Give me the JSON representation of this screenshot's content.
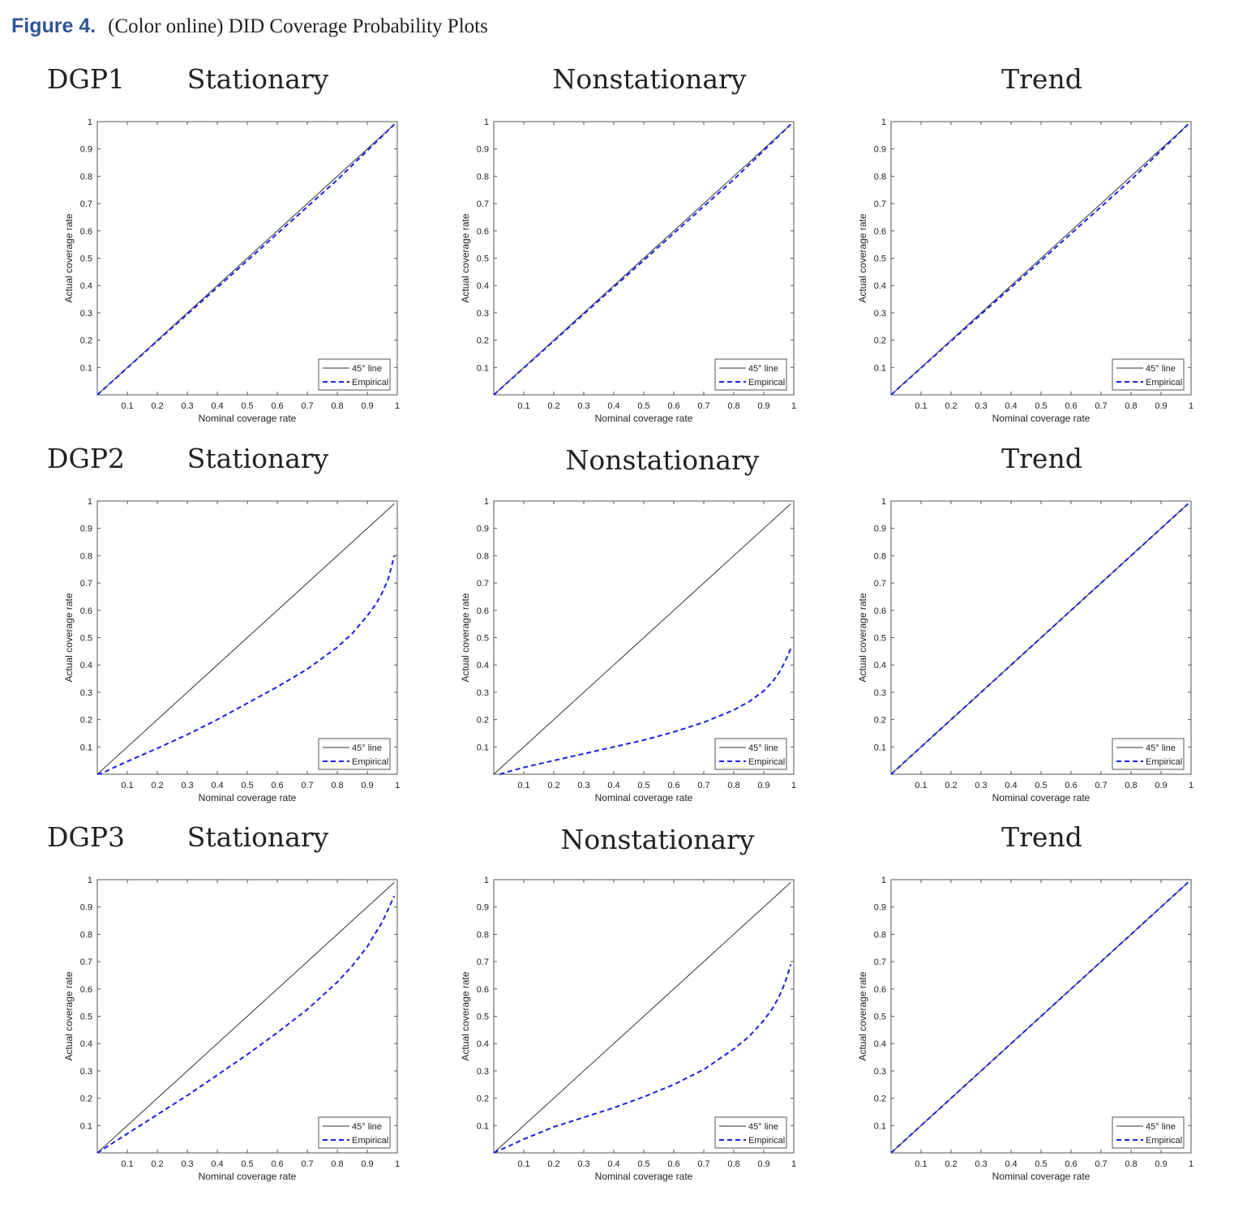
{
  "figure": {
    "label": "Figure 4.",
    "caption": "(Color online) DID Coverage Probability Plots",
    "label_color": "#2e5597"
  },
  "rows": [
    {
      "label": "DGP1",
      "titles": [
        "Stationary",
        "Nonstationary",
        "Trend"
      ]
    },
    {
      "label": "DGP2",
      "titles": [
        "Stationary",
        "Nonstationary",
        "Trend"
      ]
    },
    {
      "label": "DGP3",
      "titles": [
        "Stationary",
        "Nonstationary",
        "Trend"
      ]
    }
  ],
  "chart_data": [
    {
      "type": "line",
      "title": "DGP1 Stationary",
      "xlabel": "Nominal coverage rate",
      "ylabel": "Actual coverage rate",
      "xlim": [
        0,
        1
      ],
      "ylim": [
        0,
        1
      ],
      "legend_position": "bottom-right",
      "xticks": [
        "0.1",
        "0.2",
        "0.3",
        "0.4",
        "0.5",
        "0.6",
        "0.7",
        "0.8",
        "0.9",
        "1"
      ],
      "yticks": [
        "0.1",
        "0.2",
        "0.3",
        "0.4",
        "0.5",
        "0.6",
        "0.7",
        "0.8",
        "0.9",
        "1"
      ],
      "series": [
        {
          "name": "45° line",
          "color": "#333333",
          "style": "solid",
          "x": [
            0,
            0.99
          ],
          "y": [
            0,
            0.99
          ]
        },
        {
          "name": "Empirical",
          "color": "#1f1fe6",
          "style": "dashed",
          "x": [
            0,
            0.2,
            0.4,
            0.6,
            0.8,
            0.99
          ],
          "y": [
            0,
            0.197,
            0.393,
            0.59,
            0.787,
            0.99
          ]
        }
      ]
    },
    {
      "type": "line",
      "title": "DGP1 Nonstationary",
      "xlabel": "Nominal coverage rate",
      "ylabel": "Actual coverage rate",
      "xlim": [
        0,
        1
      ],
      "ylim": [
        0,
        1
      ],
      "legend_position": "bottom-right",
      "xticks": [
        "0.1",
        "0.2",
        "0.3",
        "0.4",
        "0.5",
        "0.6",
        "0.7",
        "0.8",
        "0.9",
        "1"
      ],
      "yticks": [
        "0.1",
        "0.2",
        "0.3",
        "0.4",
        "0.5",
        "0.6",
        "0.7",
        "0.8",
        "0.9",
        "1"
      ],
      "series": [
        {
          "name": "45° line",
          "color": "#333333",
          "style": "solid",
          "x": [
            0,
            0.99
          ],
          "y": [
            0,
            0.99
          ]
        },
        {
          "name": "Empirical",
          "color": "#1f1fe6",
          "style": "dashed",
          "x": [
            0,
            0.2,
            0.4,
            0.6,
            0.8,
            0.99
          ],
          "y": [
            0,
            0.197,
            0.394,
            0.591,
            0.788,
            0.99
          ]
        }
      ]
    },
    {
      "type": "line",
      "title": "DGP1 Trend",
      "xlabel": "Nominal coverage rate",
      "ylabel": "Actual coverage rate",
      "xlim": [
        0,
        1
      ],
      "ylim": [
        0,
        1
      ],
      "legend_position": "bottom-right",
      "xticks": [
        "0.1",
        "0.2",
        "0.3",
        "0.4",
        "0.5",
        "0.6",
        "0.7",
        "0.8",
        "0.9",
        "1"
      ],
      "yticks": [
        "0.1",
        "0.2",
        "0.3",
        "0.4",
        "0.5",
        "0.6",
        "0.7",
        "0.8",
        "0.9",
        "1"
      ],
      "series": [
        {
          "name": "45° line",
          "color": "#333333",
          "style": "solid",
          "x": [
            0,
            0.99
          ],
          "y": [
            0,
            0.99
          ]
        },
        {
          "name": "Empirical",
          "color": "#1f1fe6",
          "style": "dashed",
          "x": [
            0,
            0.2,
            0.4,
            0.6,
            0.8,
            0.99
          ],
          "y": [
            0,
            0.197,
            0.393,
            0.59,
            0.787,
            0.99
          ]
        }
      ]
    },
    {
      "type": "line",
      "title": "DGP2 Stationary",
      "xlabel": "Nominal coverage rate",
      "ylabel": "Actual coverage rate",
      "xlim": [
        0,
        1
      ],
      "ylim": [
        0,
        1
      ],
      "legend_position": "bottom-right",
      "xticks": [
        "0.1",
        "0.2",
        "0.3",
        "0.4",
        "0.5",
        "0.6",
        "0.7",
        "0.8",
        "0.9",
        "1"
      ],
      "yticks": [
        "0.1",
        "0.2",
        "0.3",
        "0.4",
        "0.5",
        "0.6",
        "0.7",
        "0.8",
        "0.9",
        "1"
      ],
      "series": [
        {
          "name": "45° line",
          "color": "#333333",
          "style": "solid",
          "x": [
            0,
            0.99
          ],
          "y": [
            0,
            0.99
          ]
        },
        {
          "name": "Empirical",
          "color": "#1f1fe6",
          "style": "dashed",
          "x": [
            0,
            0.02,
            0.05,
            0.1,
            0.2,
            0.3,
            0.4,
            0.5,
            0.6,
            0.7,
            0.8,
            0.85,
            0.9,
            0.93,
            0.95,
            0.97,
            0.99
          ],
          "y": [
            0,
            0.006,
            0.022,
            0.047,
            0.095,
            0.145,
            0.2,
            0.26,
            0.32,
            0.385,
            0.465,
            0.515,
            0.58,
            0.625,
            0.665,
            0.715,
            0.8
          ]
        }
      ]
    },
    {
      "type": "line",
      "title": "DGP2 Nonstationary",
      "xlabel": "Nominal coverage rate",
      "ylabel": "Actual coverage rate",
      "xlim": [
        0,
        1
      ],
      "ylim": [
        0,
        1
      ],
      "legend_position": "bottom-right",
      "xticks": [
        "0.1",
        "0.2",
        "0.3",
        "0.4",
        "0.5",
        "0.6",
        "0.7",
        "0.8",
        "0.9",
        "1"
      ],
      "yticks": [
        "0.1",
        "0.2",
        "0.3",
        "0.4",
        "0.5",
        "0.6",
        "0.7",
        "0.8",
        "0.9",
        "1"
      ],
      "series": [
        {
          "name": "45° line",
          "color": "#333333",
          "style": "solid",
          "x": [
            0,
            0.99
          ],
          "y": [
            0,
            0.99
          ]
        },
        {
          "name": "Empirical",
          "color": "#1f1fe6",
          "style": "dashed",
          "x": [
            0.02,
            0.05,
            0.1,
            0.2,
            0.3,
            0.4,
            0.5,
            0.6,
            0.7,
            0.8,
            0.85,
            0.9,
            0.93,
            0.95,
            0.97,
            0.99
          ],
          "y": [
            0,
            0.01,
            0.025,
            0.05,
            0.075,
            0.1,
            0.125,
            0.155,
            0.19,
            0.235,
            0.265,
            0.305,
            0.34,
            0.37,
            0.41,
            0.46
          ]
        }
      ]
    },
    {
      "type": "line",
      "title": "DGP2 Trend",
      "xlabel": "Nominal coverage rate",
      "ylabel": "Actual coverage rate",
      "xlim": [
        0,
        1
      ],
      "ylim": [
        0,
        1
      ],
      "legend_position": "bottom-right",
      "xticks": [
        "0.1",
        "0.2",
        "0.3",
        "0.4",
        "0.5",
        "0.6",
        "0.7",
        "0.8",
        "0.9",
        "1"
      ],
      "yticks": [
        "0.1",
        "0.2",
        "0.3",
        "0.4",
        "0.5",
        "0.6",
        "0.7",
        "0.8",
        "0.9",
        "1"
      ],
      "series": [
        {
          "name": "45° line",
          "color": "#333333",
          "style": "solid",
          "x": [
            0,
            0.99
          ],
          "y": [
            0,
            0.99
          ]
        },
        {
          "name": "Empirical",
          "color": "#1f1fe6",
          "style": "dashed",
          "x": [
            0,
            0.99
          ],
          "y": [
            0,
            0.99
          ]
        }
      ]
    },
    {
      "type": "line",
      "title": "DGP3 Stationary",
      "xlabel": "Nominal coverage rate",
      "ylabel": "Actual coverage rate",
      "xlim": [
        0,
        1
      ],
      "ylim": [
        0,
        1
      ],
      "legend_position": "bottom-right",
      "xticks": [
        "0.1",
        "0.2",
        "0.3",
        "0.4",
        "0.5",
        "0.6",
        "0.7",
        "0.8",
        "0.9",
        "1"
      ],
      "yticks": [
        "0.1",
        "0.2",
        "0.3",
        "0.4",
        "0.5",
        "0.6",
        "0.7",
        "0.8",
        "0.9",
        "1"
      ],
      "series": [
        {
          "name": "45° line",
          "color": "#333333",
          "style": "solid",
          "x": [
            0,
            0.99
          ],
          "y": [
            0,
            0.99
          ]
        },
        {
          "name": "Empirical",
          "color": "#1f1fe6",
          "style": "dashed",
          "x": [
            0,
            0.05,
            0.1,
            0.2,
            0.3,
            0.4,
            0.5,
            0.6,
            0.7,
            0.8,
            0.85,
            0.9,
            0.95,
            0.99
          ],
          "y": [
            0,
            0.035,
            0.07,
            0.14,
            0.21,
            0.285,
            0.36,
            0.44,
            0.525,
            0.625,
            0.685,
            0.755,
            0.845,
            0.94
          ]
        }
      ]
    },
    {
      "type": "line",
      "title": "DGP3 Nonstationary",
      "xlabel": "Nominal coverage rate",
      "ylabel": "Actual coverage rate",
      "xlim": [
        0,
        1
      ],
      "ylim": [
        0,
        1
      ],
      "legend_position": "bottom-right",
      "xticks": [
        "0.1",
        "0.2",
        "0.3",
        "0.4",
        "0.5",
        "0.6",
        "0.7",
        "0.8",
        "0.9",
        "1"
      ],
      "yticks": [
        "0.1",
        "0.2",
        "0.3",
        "0.4",
        "0.5",
        "0.6",
        "0.7",
        "0.8",
        "0.9",
        "1"
      ],
      "series": [
        {
          "name": "45° line",
          "color": "#333333",
          "style": "solid",
          "x": [
            0,
            0.99
          ],
          "y": [
            0,
            0.99
          ]
        },
        {
          "name": "Empirical",
          "color": "#1f1fe6",
          "style": "dashed",
          "x": [
            0,
            0.05,
            0.1,
            0.2,
            0.3,
            0.4,
            0.5,
            0.6,
            0.7,
            0.8,
            0.85,
            0.9,
            0.93,
            0.95,
            0.97,
            0.99
          ],
          "y": [
            0,
            0.025,
            0.05,
            0.095,
            0.13,
            0.165,
            0.205,
            0.25,
            0.305,
            0.38,
            0.425,
            0.485,
            0.53,
            0.57,
            0.62,
            0.69
          ]
        }
      ]
    },
    {
      "type": "line",
      "title": "DGP3 Trend",
      "xlabel": "Nominal coverage rate",
      "ylabel": "Actual coverage rate",
      "xlim": [
        0,
        1
      ],
      "ylim": [
        0,
        1
      ],
      "legend_position": "bottom-right",
      "xticks": [
        "0.1",
        "0.2",
        "0.3",
        "0.4",
        "0.5",
        "0.6",
        "0.7",
        "0.8",
        "0.9",
        "1"
      ],
      "yticks": [
        "0.1",
        "0.2",
        "0.3",
        "0.4",
        "0.5",
        "0.6",
        "0.7",
        "0.8",
        "0.9",
        "1"
      ],
      "series": [
        {
          "name": "45° line",
          "color": "#333333",
          "style": "solid",
          "x": [
            0,
            0.99
          ],
          "y": [
            0,
            0.99
          ]
        },
        {
          "name": "Empirical",
          "color": "#1f1fe6",
          "style": "dashed",
          "x": [
            0,
            0.99
          ],
          "y": [
            0,
            0.99
          ]
        }
      ]
    }
  ]
}
